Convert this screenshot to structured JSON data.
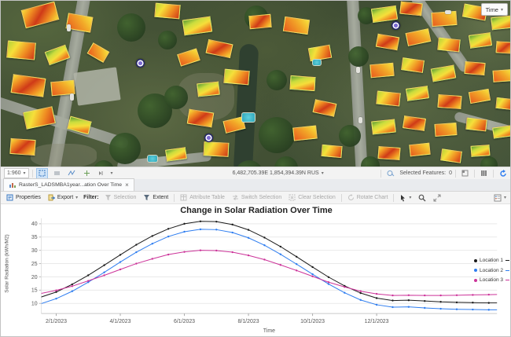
{
  "map": {
    "time_button_label": "Time",
    "status_bar": {
      "scale_value": "1:960",
      "coordinates": "6,482,705.39E 1,854,394.39N RUS",
      "selected_features_label": "Selected Features:",
      "selected_features_count": "0"
    }
  },
  "chart_panel": {
    "tab": {
      "title": "RasterS_LADSMBA1year...ation Over Time"
    },
    "toolbar": {
      "properties_label": "Properties",
      "export_label": "Export",
      "filter_label": "Filter:",
      "selection_label": "Selection",
      "extent_label": "Extent",
      "attribute_table_label": "Attribute Table",
      "switch_selection_label": "Switch Selection",
      "clear_selection_label": "Clear Selection",
      "rotate_chart_label": "Rotate Chart"
    }
  },
  "chart_data": {
    "type": "line",
    "title": "Change in Solar Radiation Over Time",
    "xlabel": "Time",
    "ylabel": "Solar Radiation (kWh/M2)",
    "ylim": [
      6,
      42
    ],
    "yticks": [
      10,
      15,
      20,
      25,
      30,
      35,
      40
    ],
    "grid": true,
    "legend_position": "right",
    "xtick_labels": [
      "2/1/2023",
      "4/1/2023",
      "6/1/2023",
      "8/1/2023",
      "10/1/2023",
      "12/1/2023"
    ],
    "xtick_months": [
      1,
      3,
      5,
      7,
      9,
      11
    ],
    "x_months": [
      0,
      0.5,
      1,
      1.5,
      2,
      2.5,
      3,
      3.5,
      4,
      4.5,
      5,
      5.5,
      6,
      6.5,
      7,
      7.5,
      8,
      8.5,
      9,
      9.5,
      10,
      10.5,
      11,
      11.5,
      12,
      12.5,
      13,
      13.5,
      14,
      14.5,
      15
    ],
    "series": [
      {
        "name": "Location 1",
        "color": "#1a1a1a",
        "values": [
          11.2,
          12.3,
          14.3,
          17.2,
          20.6,
          24.4,
          28.3,
          32.1,
          35.4,
          38.1,
          40.0,
          40.9,
          40.8,
          39.7,
          37.7,
          34.8,
          31.4,
          27.6,
          23.7,
          19.9,
          16.6,
          13.9,
          12.0,
          11.1,
          11.2,
          10.9,
          10.6,
          10.4,
          10.3,
          10.2,
          10.2
        ]
      },
      {
        "name": "Location 2",
        "color": "#2e7df0",
        "values": [
          8.7,
          9.8,
          11.8,
          14.6,
          18.0,
          21.7,
          25.6,
          29.3,
          32.5,
          35.2,
          37.0,
          37.9,
          37.8,
          36.7,
          34.7,
          31.9,
          28.5,
          24.8,
          21.0,
          17.3,
          14.0,
          11.3,
          9.5,
          8.6,
          8.7,
          8.3,
          8.0,
          7.8,
          7.7,
          7.6,
          7.6
        ]
      },
      {
        "name": "Location 3",
        "color": "#cc3399",
        "values": [
          13.1,
          13.7,
          14.9,
          16.5,
          18.5,
          20.6,
          22.8,
          25.0,
          26.8,
          28.4,
          29.4,
          30.0,
          29.9,
          29.3,
          28.1,
          26.5,
          24.5,
          22.4,
          20.2,
          18.0,
          16.2,
          14.6,
          13.6,
          13.0,
          13.1,
          13.0,
          13.0,
          13.1,
          13.2,
          13.3,
          13.4
        ]
      }
    ]
  }
}
